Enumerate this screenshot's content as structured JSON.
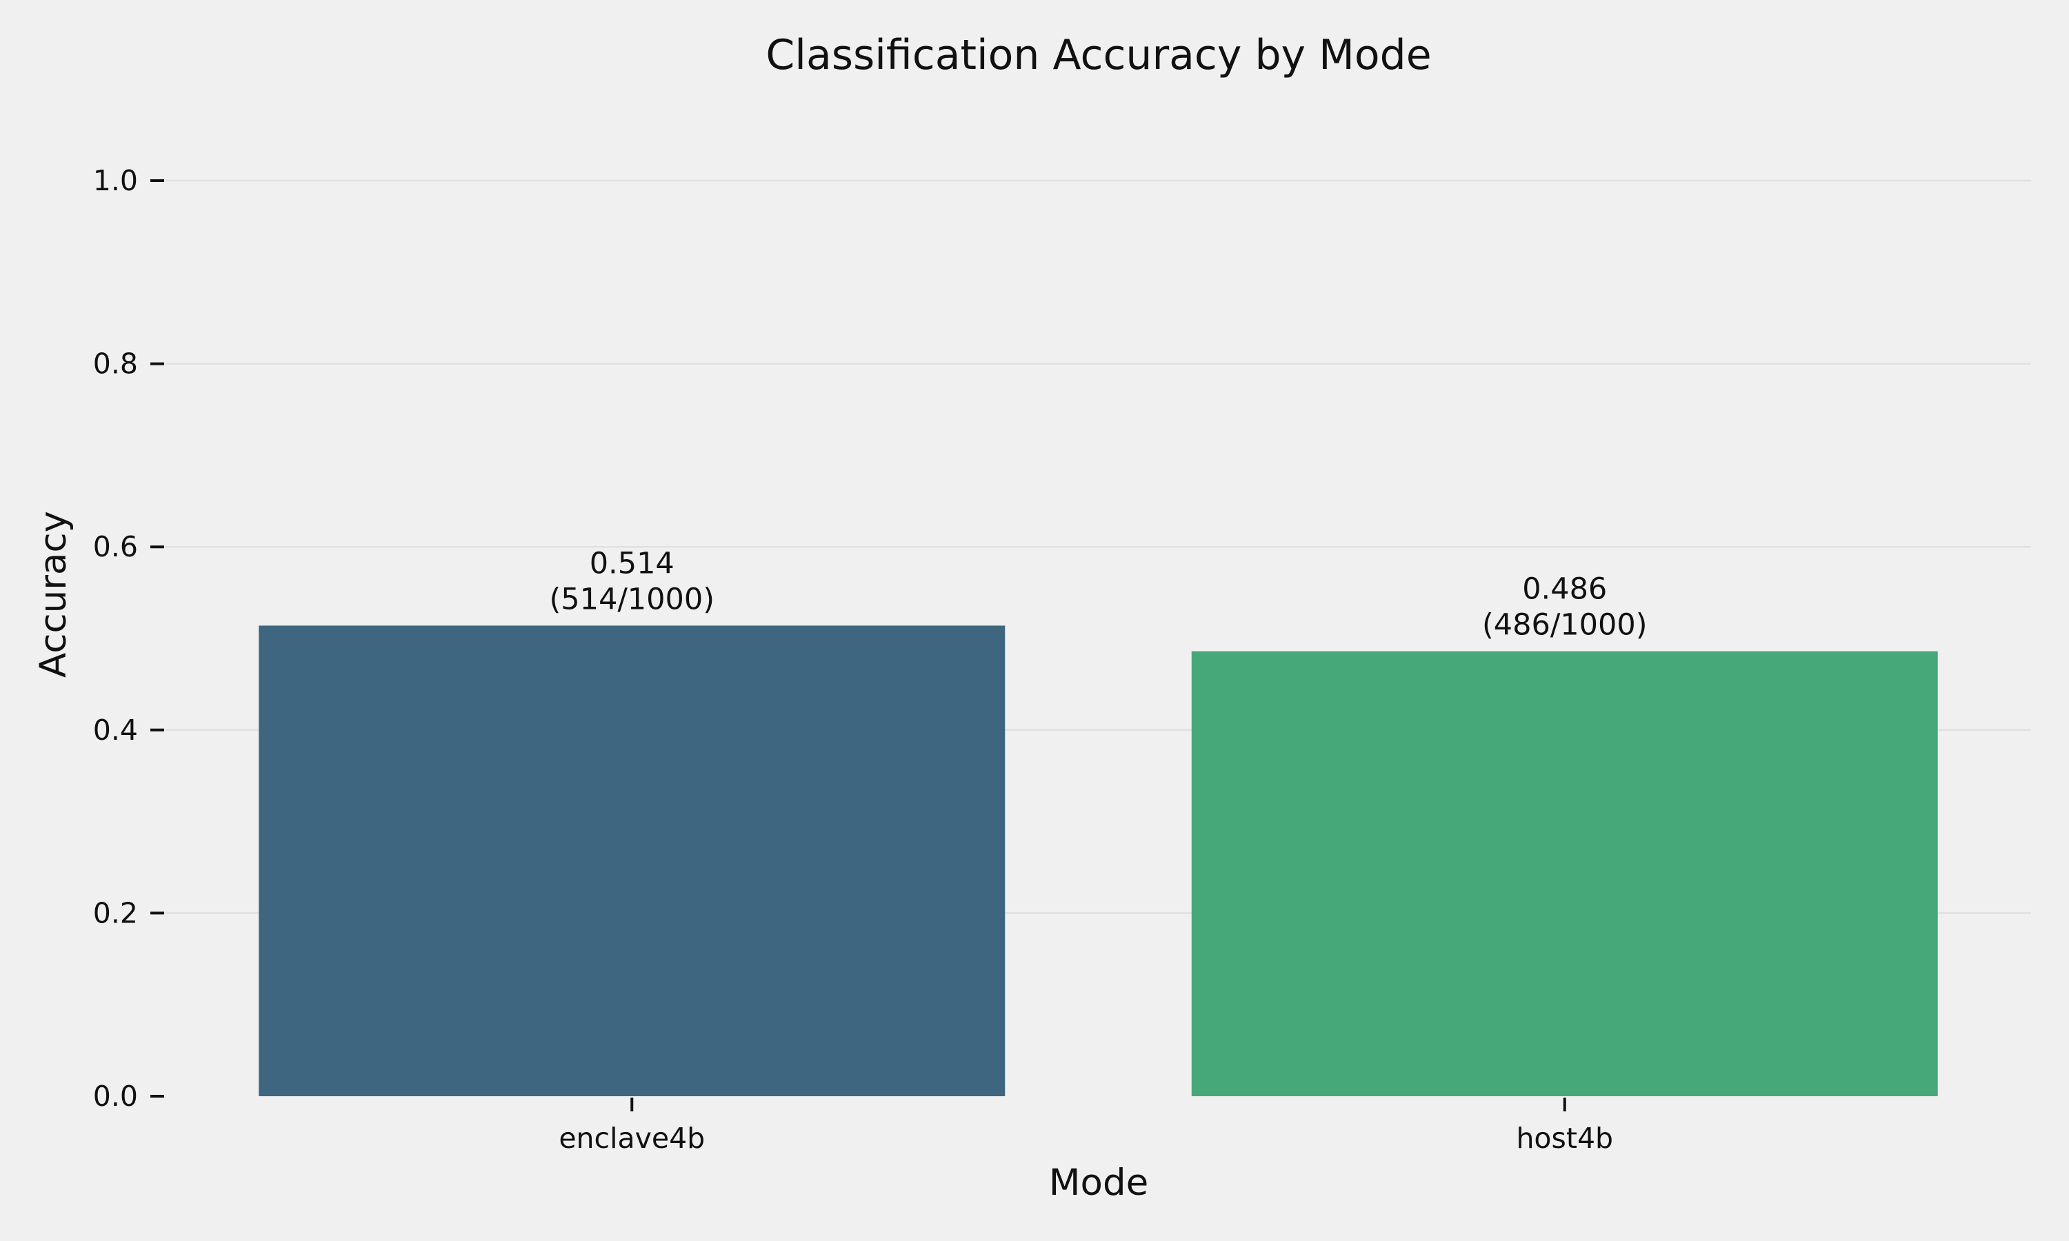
{
  "chart_data": {
    "type": "bar",
    "title": "Classification Accuracy by Mode",
    "xlabel": "Mode",
    "ylabel": "Accuracy",
    "categories": [
      "enclave4b",
      "host4b"
    ],
    "values": [
      0.514,
      0.486
    ],
    "annotations": [
      "0.514",
      "(514/1000)",
      "0.486",
      "(486/1000)"
    ],
    "bar_labels": [
      {
        "value_text": "0.514",
        "count_text": "(514/1000)"
      },
      {
        "value_text": "0.486",
        "count_text": "(486/1000)"
      }
    ],
    "colors": [
      "#3e6680",
      "#46a879"
    ],
    "ylim": [
      0,
      1.0
    ],
    "yticks": [
      0.0,
      0.2,
      0.4,
      0.6,
      0.8,
      1.0
    ],
    "ytick_labels": [
      "0.0",
      "0.2",
      "0.4",
      "0.6",
      "0.8",
      "1.0"
    ],
    "grid": true,
    "legend": "none"
  },
  "colors": {
    "background": "#f0f0f0",
    "grid": "#e0e0e0",
    "text": "#111111"
  }
}
